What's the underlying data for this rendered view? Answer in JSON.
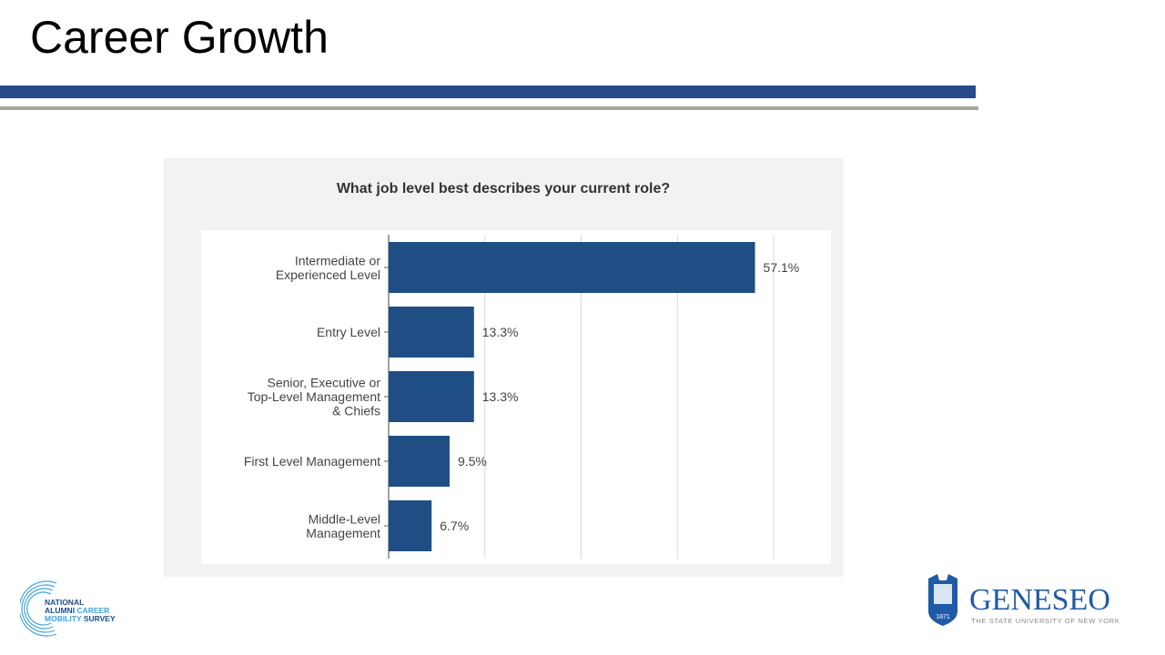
{
  "slide": {
    "title": "Career Growth"
  },
  "colors": {
    "accent_blue": "#264a8c",
    "rule_gray": "#a8a8a0",
    "bar": "#1f4e85",
    "panel": "#f2f2f2"
  },
  "chart_data": {
    "type": "bar",
    "orientation": "horizontal",
    "title": "What job level best describes your current role?",
    "categories": [
      [
        "Intermediate or",
        "Experienced Level"
      ],
      [
        "Entry Level"
      ],
      [
        "Senior, Executive or",
        "Top-Level Management",
        "& Chiefs"
      ],
      [
        "First Level Management"
      ],
      [
        "Middle-Level",
        "Management"
      ]
    ],
    "values": [
      57.1,
      13.3,
      13.3,
      9.5,
      6.7
    ],
    "value_labels": [
      "57.1%",
      "13.3%",
      "13.3%",
      "9.5%",
      "6.7%"
    ],
    "unit": "%",
    "xlim": [
      0,
      60
    ],
    "gridlines": [
      0,
      15,
      30,
      45,
      60
    ],
    "grid": true,
    "legend": "none"
  },
  "logos": {
    "left": {
      "lines": [
        "NATIONAL",
        "ALUMNI CAREER",
        "MOBILITY SURVEY"
      ]
    },
    "right": {
      "name": "GENESEO",
      "subtitle": "THE STATE UNIVERSITY OF NEW YORK",
      "year": "1871"
    }
  }
}
